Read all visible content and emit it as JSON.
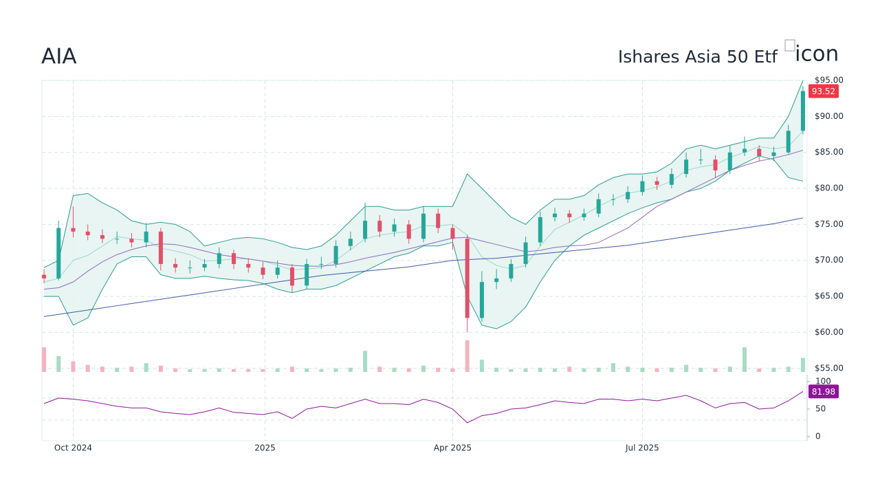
{
  "header": {
    "ticker": "AIA",
    "name": "Ishares Asia 50 Etf",
    "icon_alt": "icon"
  },
  "chart_data": {
    "type": "candlestick",
    "x": [
      "2024-09-17",
      "2024-09-24",
      "2024-10-01",
      "2024-10-08",
      "2024-10-15",
      "2024-10-22",
      "2024-10-29",
      "2024-11-05",
      "2024-11-12",
      "2024-11-19",
      "2024-11-26",
      "2024-12-03",
      "2024-12-10",
      "2024-12-17",
      "2024-12-24",
      "2024-12-31",
      "2025-01-07",
      "2025-01-14",
      "2025-01-21",
      "2025-01-28",
      "2025-02-04",
      "2025-02-11",
      "2025-02-18",
      "2025-02-25",
      "2025-03-04",
      "2025-03-11",
      "2025-03-18",
      "2025-03-25",
      "2025-04-01",
      "2025-04-08",
      "2025-04-15",
      "2025-04-22",
      "2025-04-29",
      "2025-05-06",
      "2025-05-13",
      "2025-05-20",
      "2025-05-27",
      "2025-06-03",
      "2025-06-10",
      "2025-06-17",
      "2025-06-24",
      "2025-07-01",
      "2025-07-08",
      "2025-07-15",
      "2025-07-22",
      "2025-07-29",
      "2025-08-05",
      "2025-08-12",
      "2025-08-19",
      "2025-08-26",
      "2025-09-02",
      "2025-09-09",
      "2025-09-16"
    ],
    "open": [
      68,
      67.5,
      74.5,
      74,
      73.5,
      73,
      73,
      72.5,
      74,
      69.5,
      69,
      69,
      69.5,
      71,
      69.5,
      69,
      68,
      69,
      66.5,
      69.5,
      69.5,
      72,
      73,
      75.5,
      74,
      75,
      73,
      76.5,
      74.5,
      73,
      62,
      67,
      67.5,
      69.5,
      72.5,
      76,
      76.5,
      76,
      76.5,
      78.5,
      78.5,
      79.5,
      81,
      80.5,
      82,
      84,
      84,
      82.5,
      85,
      85.5,
      84.5,
      85,
      88
    ],
    "high": [
      68.8,
      75.5,
      77.5,
      75,
      74.3,
      74,
      73.8,
      75.2,
      74.5,
      70.3,
      70,
      70.2,
      71.8,
      71.5,
      70.3,
      69.8,
      70,
      69.5,
      70.2,
      70.5,
      72.8,
      74,
      78,
      76.3,
      75.8,
      75.6,
      77.5,
      77.2,
      75,
      73.5,
      68.5,
      68.8,
      70.2,
      73.3,
      76.8,
      77.3,
      77,
      77.2,
      79.3,
      79.2,
      80.3,
      81.8,
      81.6,
      82.8,
      85,
      85.5,
      84.6,
      86,
      87.2,
      86,
      85.8,
      88.8,
      94.2
    ],
    "low": [
      66.8,
      67.2,
      73.2,
      72.8,
      72.4,
      72.3,
      71.8,
      71.8,
      68.6,
      68.3,
      68.2,
      68.5,
      68.9,
      68.8,
      68.3,
      67.4,
      67.5,
      65.5,
      66,
      68.8,
      69,
      71.4,
      72.5,
      73.2,
      73.3,
      72.3,
      72.5,
      73.8,
      71.5,
      60,
      61.5,
      66,
      67,
      69,
      72,
      75.4,
      75.2,
      75.5,
      76,
      77.6,
      78,
      79,
      79.8,
      80,
      81.5,
      83.3,
      81.5,
      82,
      84.5,
      83.8,
      83.8,
      84.8,
      87.5
    ],
    "close": [
      67.5,
      74.5,
      74,
      73.5,
      73,
      73,
      72.5,
      74,
      69.5,
      69,
      69,
      69.5,
      71,
      69.5,
      69,
      68,
      69,
      66.5,
      69.5,
      69.5,
      72,
      73,
      75.5,
      74,
      75,
      73,
      76.5,
      74.5,
      73,
      62,
      67,
      67.5,
      69.5,
      72.5,
      76,
      76.5,
      76,
      76.5,
      78.5,
      78.5,
      79.5,
      81,
      80.5,
      82,
      84,
      84,
      82.5,
      85,
      85.5,
      84.5,
      85,
      88,
      93.52
    ],
    "volume": [
      70,
      45,
      30,
      20,
      15,
      12,
      15,
      25,
      18,
      10,
      8,
      8,
      10,
      8,
      8,
      8,
      10,
      15,
      10,
      8,
      10,
      12,
      60,
      15,
      12,
      10,
      18,
      12,
      10,
      90,
      35,
      12,
      8,
      10,
      12,
      10,
      15,
      10,
      12,
      25,
      15,
      12,
      10,
      12,
      20,
      12,
      10,
      15,
      70,
      10,
      12,
      15,
      40
    ],
    "colors": {
      "up": "#26a69a",
      "down": "#e0506a",
      "up_volume": "#a8dcc4",
      "down_volume": "#f4b4bf",
      "band": "#e6f4f1",
      "last": "#f23645"
    },
    "lines": [
      {
        "color": "#2a9d8f",
        "values": [
          69,
          70,
          79,
          79.3,
          78,
          77,
          75.5,
          75,
          75.3,
          75,
          74,
          72,
          72.5,
          73,
          73.2,
          73,
          72.5,
          71.8,
          71.5,
          72,
          73.5,
          75.5,
          77.5,
          77.5,
          77,
          77,
          77.5,
          77.5,
          77.5,
          82,
          80,
          78,
          76,
          75,
          77,
          78.5,
          78.5,
          79,
          80.5,
          81.5,
          82,
          82,
          82.3,
          83.5,
          85.5,
          86,
          85.5,
          86,
          86.5,
          87,
          87,
          90,
          95
        ]
      },
      {
        "color": "#9fd8cc",
        "values": [
          67,
          67.5,
          70,
          70.7,
          72,
          73.3,
          73,
          72.8,
          71.7,
          71.3,
          70.8,
          69.9,
          70,
          70.2,
          70.2,
          69.9,
          69.3,
          68.7,
          68.8,
          69,
          70,
          71.5,
          73,
          73.5,
          73.8,
          74,
          74.8,
          74.8,
          75,
          73.5,
          70.5,
          69.3,
          68.8,
          69.3,
          72,
          74.3,
          75.3,
          76.3,
          77.5,
          78.5,
          79.3,
          79.7,
          80.2,
          81,
          82.5,
          83,
          83.3,
          84.3,
          85,
          85.8,
          85.5,
          85.8,
          88
        ]
      },
      {
        "color": "#2a9d8f",
        "values": [
          65,
          65,
          61,
          62,
          66,
          69.5,
          70.5,
          70.5,
          68,
          67.5,
          67.5,
          67.8,
          67.5,
          67.3,
          67.2,
          66.8,
          66,
          65.5,
          66,
          66,
          66.5,
          67.5,
          68.5,
          69.5,
          70.5,
          71,
          72,
          72,
          72.5,
          65,
          61,
          60.5,
          61.5,
          63.5,
          67,
          70,
          72,
          73.5,
          74.5,
          75.5,
          76.5,
          77.3,
          78,
          78.5,
          79.5,
          80,
          81,
          82.5,
          83.5,
          84.5,
          84,
          81.5,
          81
        ]
      },
      {
        "color": "#8e6bbf",
        "values": [
          66,
          66.2,
          67,
          68.5,
          69.8,
          70.8,
          71.5,
          72,
          72.3,
          72.2,
          71.8,
          71.3,
          70.8,
          70.5,
          70.2,
          69.9,
          69.6,
          69.3,
          69.2,
          69.2,
          69.4,
          69.8,
          70.3,
          70.7,
          71.1,
          71.6,
          72.1,
          72.6,
          73.1,
          73.2,
          72.7,
          72.2,
          71.7,
          71.2,
          71.4,
          71.8,
          72,
          72.1,
          72.5,
          73.5,
          74.5,
          76,
          77.5,
          78.5,
          79.5,
          80.5,
          81.5,
          82.5,
          83.2,
          83.8,
          84.2,
          84.7,
          85.3
        ]
      },
      {
        "color": "#3f5aa8",
        "values": [
          62.2,
          62.5,
          62.8,
          63.1,
          63.4,
          63.7,
          64,
          64.3,
          64.6,
          64.9,
          65.2,
          65.5,
          65.8,
          66.1,
          66.4,
          66.7,
          67,
          67.3,
          67.6,
          67.9,
          68.1,
          68.3,
          68.5,
          68.7,
          68.9,
          69.1,
          69.4,
          69.7,
          70,
          70.1,
          70.2,
          70.3,
          70.5,
          70.7,
          70.9,
          71.1,
          71.3,
          71.5,
          71.7,
          71.9,
          72.1,
          72.4,
          72.7,
          73,
          73.3,
          73.6,
          73.9,
          74.2,
          74.5,
          74.8,
          75.1,
          75.5,
          75.9
        ]
      }
    ],
    "xlim": [
      "2024-09-16",
      "2025-09-18"
    ],
    "xticks": [
      {
        "value": "2024-10-01",
        "label": "Oct 2024"
      },
      {
        "value": "2025-01-01",
        "label": "2025"
      },
      {
        "value": "2025-04-01",
        "label": "Apr 2025"
      },
      {
        "value": "2025-07-01",
        "label": "Jul 2025"
      }
    ],
    "ylim": [
      54.5,
      95
    ],
    "yticks": [
      {
        "value": 55,
        "label": "$55.00"
      },
      {
        "value": 60,
        "label": "$60.00"
      },
      {
        "value": 65,
        "label": "$65.00"
      },
      {
        "value": 70,
        "label": "$70.00"
      },
      {
        "value": 75,
        "label": "$75.00"
      },
      {
        "value": 80,
        "label": "$80.00"
      },
      {
        "value": 85,
        "label": "$85.00"
      },
      {
        "value": 90,
        "label": "$90.00"
      },
      {
        "value": 95,
        "label": "$95.00"
      }
    ],
    "grid": true,
    "rsi": {
      "color": "#8e1599",
      "values": [
        60,
        70,
        68,
        65,
        60,
        55,
        52,
        52,
        45,
        42,
        40,
        45,
        52,
        44,
        42,
        40,
        45,
        33,
        50,
        55,
        52,
        60,
        68,
        60,
        60,
        58,
        68,
        62,
        50,
        25,
        38,
        42,
        50,
        52,
        58,
        65,
        62,
        60,
        68,
        68,
        65,
        68,
        65,
        70,
        75,
        65,
        52,
        60,
        62,
        50,
        52,
        65,
        81.98
      ],
      "ylim": [
        0,
        100
      ],
      "yticks": [
        0,
        50,
        100
      ],
      "levels": [
        30,
        70
      ]
    }
  }
}
